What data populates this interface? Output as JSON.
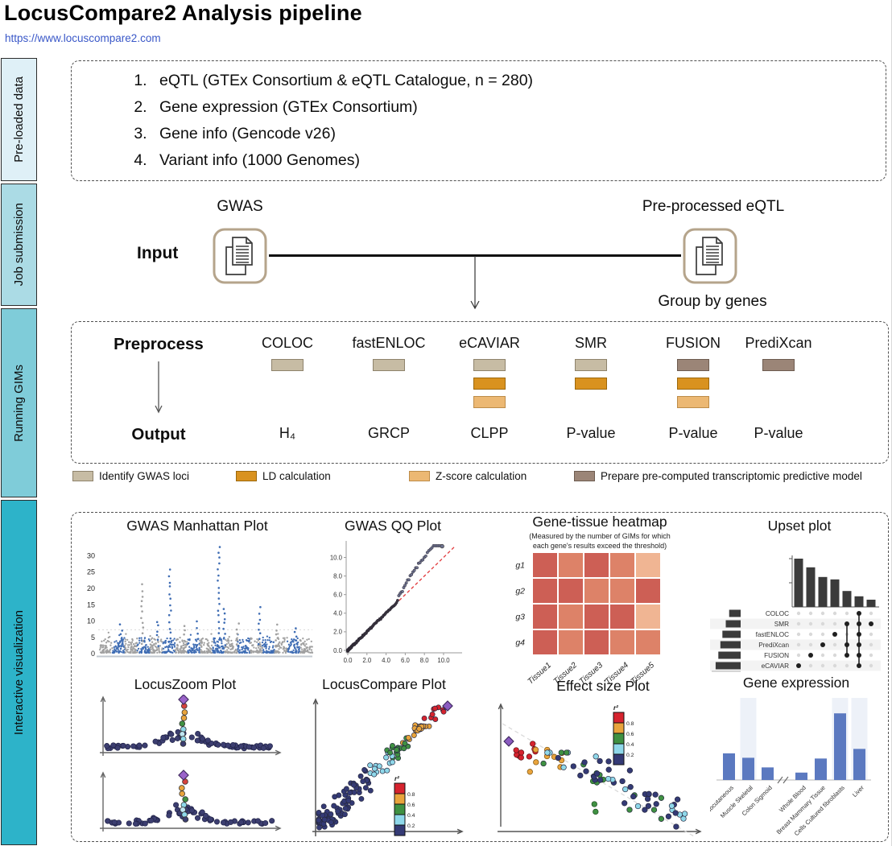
{
  "header": {
    "title": "LocusCompare2 Analysis pipeline",
    "url": "https://www.locuscompare2.com"
  },
  "sidebar": {
    "items": [
      {
        "label": "Pre-loaded data",
        "color": "#dff0f7"
      },
      {
        "label": "Job submission",
        "color": "#abdbe5"
      },
      {
        "label": "Running GIMs",
        "color": "#7fccd9"
      },
      {
        "label": "Interactive visualization",
        "color": "#2db3c9"
      }
    ]
  },
  "preloaded": {
    "items": [
      "eQTL (GTEx Consortium & eQTL Catalogue, n = 280)",
      "Gene expression (GTEx Consortium)",
      "Gene info (Gencode v26)",
      "Variant info (1000 Genomes)"
    ]
  },
  "job_submission": {
    "input_label": "Input",
    "gwas_label": "GWAS",
    "eqtl_label": "Pre-processed eQTL",
    "group_label": "Group by genes"
  },
  "gims": {
    "preprocess_label": "Preprocess",
    "output_label": "Output",
    "step_colors": {
      "loci": {
        "fill": "#c7bca4",
        "border": "#8e836c"
      },
      "ld": {
        "fill": "#d9921f",
        "border": "#9c680d"
      },
      "zscore": {
        "fill": "#ecb873",
        "border": "#bd8c49"
      },
      "model": {
        "fill": "#9b8577",
        "border": "#6d5c50"
      }
    },
    "columns": [
      {
        "name": "COLOC",
        "steps": [
          "loci"
        ],
        "output": "H₄"
      },
      {
        "name": "fastENLOC",
        "steps": [
          "loci"
        ],
        "output": "GRCP"
      },
      {
        "name": "eCAVIAR",
        "steps": [
          "loci",
          "ld",
          "zscore"
        ],
        "output": "CLPP"
      },
      {
        "name": "SMR",
        "steps": [
          "loci",
          "ld"
        ],
        "output": "P-value"
      },
      {
        "name": "FUSION",
        "steps": [
          "model",
          "ld",
          "zscore"
        ],
        "output": "P-value"
      },
      {
        "name": "PrediXcan",
        "steps": [
          "model"
        ],
        "output": "P-value"
      }
    ],
    "legend": [
      {
        "step": "loci",
        "label": "Identify GWAS loci"
      },
      {
        "step": "ld",
        "label": "LD calculation"
      },
      {
        "step": "zscore",
        "label": "Z-score calculation"
      },
      {
        "step": "model",
        "label": "Prepare pre-computed transcriptomic predictive model"
      }
    ]
  },
  "chart_data": [
    {
      "id": "manhattan",
      "type": "manhattan",
      "title": "GWAS Manhattan Plot",
      "yticks": [
        0,
        5,
        10,
        15,
        20,
        25,
        30
      ],
      "ylim": [
        0,
        34
      ],
      "threshold_line": 7.3,
      "n_chromosome_blocks": 17,
      "colors": {
        "block_a": "#a1a1a1",
        "block_b": "#3f6db4"
      },
      "peaks": [
        {
          "x": 0.1,
          "h": 9,
          "c": "b"
        },
        {
          "x": 0.2,
          "h": 21,
          "c": "a"
        },
        {
          "x": 0.27,
          "h": 10,
          "c": "b"
        },
        {
          "x": 0.33,
          "h": 25.5,
          "c": "b"
        },
        {
          "x": 0.4,
          "h": 8.5,
          "c": "a"
        },
        {
          "x": 0.46,
          "h": 9.5,
          "c": "b"
        },
        {
          "x": 0.56,
          "h": 33,
          "c": "b"
        },
        {
          "x": 0.585,
          "h": 14,
          "c": "b"
        },
        {
          "x": 0.65,
          "h": 9,
          "c": "a"
        },
        {
          "x": 0.75,
          "h": 14,
          "c": "b"
        },
        {
          "x": 0.83,
          "h": 9,
          "c": "a"
        },
        {
          "x": 0.92,
          "h": 8,
          "c": "b"
        }
      ]
    },
    {
      "id": "qq",
      "type": "qq",
      "title": "GWAS QQ Plot",
      "xticks": [
        "0.0",
        "2.0",
        "4.0",
        "6.0",
        "8.0",
        "10.0"
      ],
      "yticks": [
        "0.0",
        "2.0",
        "4.0",
        "6.0",
        "8.0",
        "10.0"
      ],
      "identity_line_color": "#e23b3e",
      "point_dark": "#3a3440",
      "point_light": "#6e7390"
    },
    {
      "id": "heatmap",
      "type": "heatmap",
      "title": "Gene-tissue heatmap",
      "subtitle": "(Measured by the number of GIMs for which\neach gene's results exceed the threshold)",
      "rows": [
        "g1",
        "g2",
        "g3",
        "g4"
      ],
      "cols": [
        "Tissue1",
        "Tissue2",
        "Tissue3",
        "Tissue4",
        "Tissue5"
      ],
      "values": [
        [
          3,
          2,
          3,
          2,
          1
        ],
        [
          3,
          3,
          2,
          2,
          3
        ],
        [
          3,
          2,
          3,
          3,
          1
        ],
        [
          3,
          2,
          3,
          2,
          2
        ]
      ],
      "palette": {
        "1": "#f0b593",
        "2": "#dd8268",
        "3": "#cd5f55"
      }
    },
    {
      "id": "upset",
      "type": "upset",
      "title": "Upset plot",
      "sets": [
        "COLOC",
        "SMR",
        "fastENLOC",
        "PrediXcan",
        "FUSION",
        "eCAVIAR"
      ],
      "set_sizes": [
        0.34,
        0.44,
        0.54,
        0.6,
        0.66,
        0.74
      ],
      "intersection_sizes": [
        1,
        0.82,
        0.62,
        0.57,
        0.33,
        0.22,
        0.15
      ],
      "memberships": [
        [
          5
        ],
        [
          4
        ],
        [
          3
        ],
        [
          2
        ],
        [
          1,
          3,
          4
        ],
        [
          0,
          1,
          2,
          3,
          4,
          5
        ],
        [
          1
        ]
      ],
      "bar_color": "#3b3b3b"
    },
    {
      "id": "locuszoom",
      "type": "locuszoom",
      "title": "LocusZoom Plot",
      "panels": 2,
      "base_color": "#3c3e70",
      "spike_colors": [
        "#9a63c9",
        "#d6423c",
        "#e9a43c",
        "#3f9142",
        "#8fd8ea"
      ]
    },
    {
      "id": "locuscompare",
      "type": "locuscompare",
      "title": "LocusCompare Plot",
      "lead_color": "#8a5bc0",
      "legend": {
        "title": "r²",
        "colors": [
          "#d6232e",
          "#e9a43c",
          "#3f9142",
          "#8fd8ea",
          "#343a75"
        ],
        "labels": [
          "0.8",
          "0.6",
          "0.4",
          "0.2"
        ]
      }
    },
    {
      "id": "effectsize",
      "type": "effectsize",
      "title": "Effect size Plot",
      "lead_color": "#8a5bc0",
      "legend": {
        "title": "r²",
        "colors": [
          "#d6232e",
          "#e9a43c",
          "#3f9142",
          "#8fd8ea",
          "#343a75"
        ],
        "labels": [
          "0.8",
          "0.6",
          "0.4",
          "0.2"
        ]
      }
    },
    {
      "id": "genexpr",
      "type": "bar",
      "title": "Gene expression",
      "categories": [
        "Adipose Subcutaneous",
        "Muscle Skeletal",
        "Colon Sigmoid",
        "Whole Blood",
        "Breast Mammary Tissue",
        "Cells Cultured fibroblasts",
        "Liver"
      ],
      "values": [
        0.36,
        0.3,
        0.17,
        0.1,
        0.29,
        0.9,
        0.42
      ],
      "axis_break_after": "Colon Sigmoid",
      "bar_color": "#5b79c0",
      "ylim": [
        0,
        1
      ]
    }
  ]
}
